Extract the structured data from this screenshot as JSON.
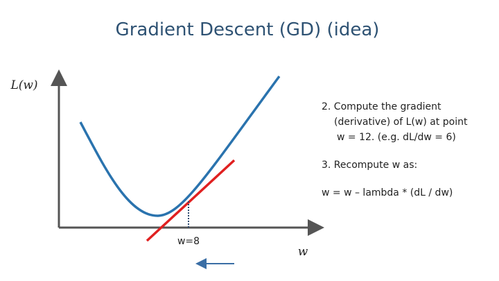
{
  "title": "Gradient Descent (GD) (idea)",
  "axes": {
    "y_label": "L(w)",
    "x_label": "w"
  },
  "marker_label": "w=8",
  "notes": [
    "2. Compute the gradient",
    "(derivative) of L(w) at point",
    "w = 12. (e.g. dL/dw = 6)",
    "3. Recompute w as:",
    "w = w – lambda * (dL / dw)"
  ]
}
